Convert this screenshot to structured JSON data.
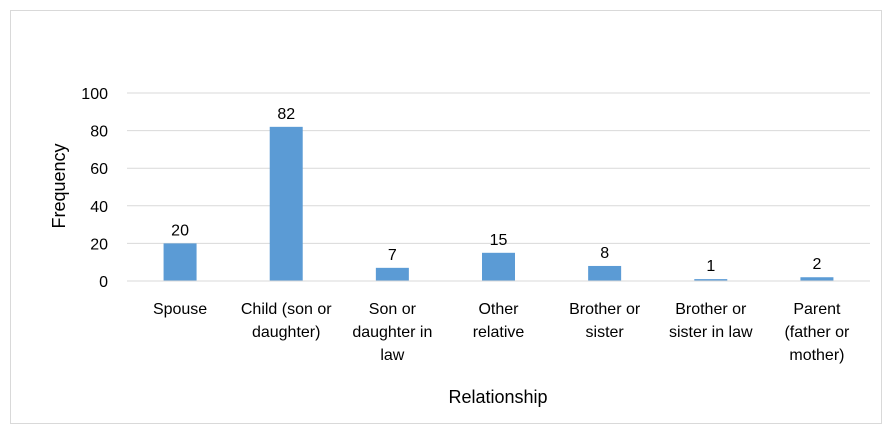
{
  "chart_data": {
    "type": "bar",
    "title": "",
    "xlabel": "Relationship",
    "ylabel": "Frequency",
    "ylim": [
      0,
      100
    ],
    "yticks": [
      "0",
      "20",
      "40",
      "60",
      "80",
      "100"
    ],
    "categories": [
      [
        "Spouse"
      ],
      [
        "Child (son or",
        "daughter)"
      ],
      [
        "Son or",
        "daughter in",
        "law"
      ],
      [
        "Other",
        "relative"
      ],
      [
        "Brother or",
        "sister"
      ],
      [
        "Brother or",
        "sister in law"
      ],
      [
        "Parent",
        "(father or",
        "mother)"
      ]
    ],
    "values": [
      20,
      82,
      7,
      15,
      8,
      1,
      2
    ],
    "data_labels": [
      "20",
      "82",
      "7",
      "15",
      "8",
      "1",
      "2"
    ],
    "grid": true,
    "legend": "none",
    "bar_color": "#5b9bd5",
    "gridline_color": "#d9d9d9"
  }
}
